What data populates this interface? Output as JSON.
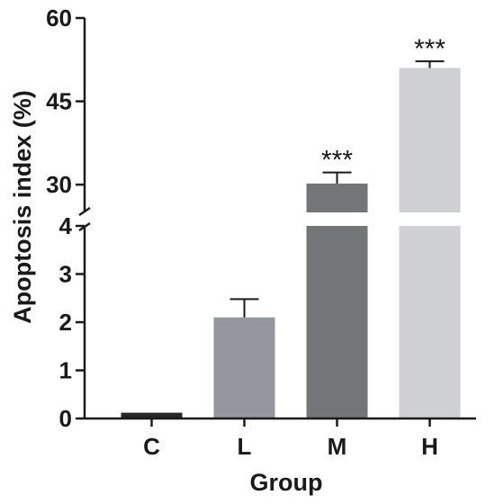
{
  "chart_data": {
    "type": "bar",
    "title": "",
    "xlabel": "Group",
    "ylabel": "Apoptosis index (%)",
    "categories": [
      "C",
      "L",
      "M",
      "H"
    ],
    "values": [
      0.12,
      2.1,
      30.2,
      51.0
    ],
    "errors": [
      0.02,
      0.38,
      2.0,
      1.2
    ],
    "annotations": [
      "",
      "",
      "***",
      "***"
    ],
    "colors": [
      "#262626",
      "#93969d",
      "#737679",
      "#cfd0d2"
    ],
    "y_axis_break": {
      "lower_segment": {
        "range": [
          0,
          4
        ],
        "ticks": [
          0,
          1,
          2,
          3,
          4
        ]
      },
      "upper_segment": {
        "range": [
          25,
          60
        ],
        "ticks": [
          30,
          45,
          60
        ]
      }
    },
    "grid": false,
    "legend": "none"
  }
}
